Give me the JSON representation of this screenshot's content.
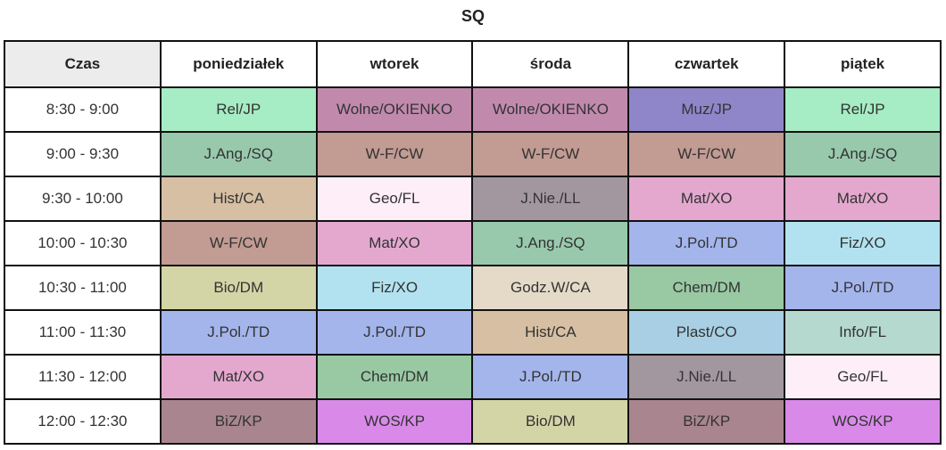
{
  "title": "SQ",
  "headers": [
    "Czas",
    "poniedziałek",
    "wtorek",
    "środa",
    "czwartek",
    "piątek"
  ],
  "colors": {
    "Rel/JP": "#a6ecc4",
    "Wolne/OKIENKO": "#c18aad",
    "J.Ang./SQ": "#98c9ad",
    "W-F/CW": "#c29b93",
    "Hist/CA": "#d6bfa3",
    "Geo/FL": "#fdeef8",
    "J.Nie./LL": "#a3979f",
    "Mat/XO": "#e4a8cf",
    "Muz/JP": "#8f86c9",
    "Fiz/XO": "#b2e2ef",
    "J.Pol./TD": "#a4b5ec",
    "Bio/DM": "#d3d5a6",
    "Godz.W/CA": "#e5dac8",
    "Chem/DM": "#98c9a3",
    "Plast/CO": "#a8cfe4",
    "Info/FL": "#b5d9ce",
    "BiZ/KP": "#a9868f",
    "WOS/KP": "#d98ae9"
  },
  "rows": [
    {
      "time": "8:30 - 9:00",
      "cells": [
        "Rel/JP",
        "Wolne/OKIENKO",
        "Wolne/OKIENKO",
        "Muz/JP",
        "Rel/JP"
      ]
    },
    {
      "time": "9:00 - 9:30",
      "cells": [
        "J.Ang./SQ",
        "W-F/CW",
        "W-F/CW",
        "W-F/CW",
        "J.Ang./SQ"
      ]
    },
    {
      "time": "9:30 - 10:00",
      "cells": [
        "Hist/CA",
        "Geo/FL",
        "J.Nie./LL",
        "Mat/XO",
        "Mat/XO"
      ]
    },
    {
      "time": "10:00 - 10:30",
      "cells": [
        "W-F/CW",
        "Mat/XO",
        "J.Ang./SQ",
        "J.Pol./TD",
        "Fiz/XO"
      ]
    },
    {
      "time": "10:30 - 11:00",
      "cells": [
        "Bio/DM",
        "Fiz/XO",
        "Godz.W/CA",
        "Chem/DM",
        "J.Pol./TD"
      ]
    },
    {
      "time": "11:00 - 11:30",
      "cells": [
        "J.Pol./TD",
        "J.Pol./TD",
        "Hist/CA",
        "Plast/CO",
        "Info/FL"
      ]
    },
    {
      "time": "11:30 - 12:00",
      "cells": [
        "Mat/XO",
        "Chem/DM",
        "J.Pol./TD",
        "J.Nie./LL",
        "Geo/FL"
      ]
    },
    {
      "time": "12:00 - 12:30",
      "cells": [
        "BiZ/KP",
        "WOS/KP",
        "Bio/DM",
        "BiZ/KP",
        "WOS/KP"
      ]
    }
  ]
}
